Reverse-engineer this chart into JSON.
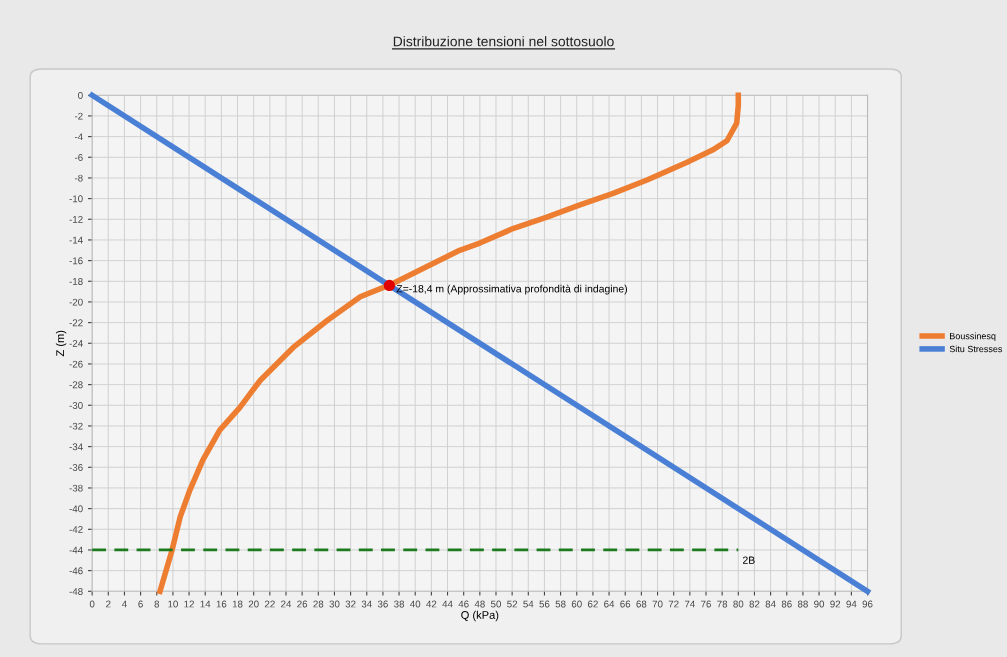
{
  "chart_data": {
    "type": "line",
    "title": "Distribuzione tensioni nel sottosuolo",
    "xlabel": "Q (kPa)",
    "ylabel": "Z (m)",
    "xlim": [
      0,
      96
    ],
    "ylim": [
      -48,
      0
    ],
    "xticks": [
      0,
      2,
      4,
      6,
      8,
      10,
      12,
      14,
      16,
      18,
      20,
      22,
      24,
      26,
      28,
      30,
      32,
      34,
      36,
      38,
      40,
      42,
      44,
      46,
      48,
      50,
      52,
      54,
      56,
      58,
      60,
      62,
      64,
      66,
      68,
      70,
      72,
      74,
      76,
      78,
      80,
      82,
      84,
      86,
      88,
      90,
      92,
      94,
      96
    ],
    "yticks": [
      0,
      -2,
      -4,
      -6,
      -8,
      -10,
      -12,
      -14,
      -16,
      -18,
      -20,
      -22,
      -24,
      -26,
      -28,
      -30,
      -32,
      -34,
      -36,
      -38,
      -40,
      -42,
      -44,
      -46,
      -48
    ],
    "grid": true,
    "legend": "right",
    "series": [
      {
        "name": "Boussinesq",
        "color": "#ed7d31",
        "x": [
          80,
          80,
          79.8,
          78.6,
          76.8,
          73.6,
          68.7,
          64.5,
          60.4,
          56.3,
          52.1,
          48,
          45.5,
          41.4,
          37.3,
          33.2,
          29.1,
          24.9,
          20.8,
          18.3,
          15.8,
          13.7,
          12.1,
          10.9,
          9.9,
          8.4
        ],
        "values": [
          0,
          -1,
          -2.7,
          -4.4,
          -5.3,
          -6.5,
          -8.2,
          -9.5,
          -10.6,
          -11.8,
          -12.9,
          -14.3,
          -15,
          -16.6,
          -18.2,
          -19.5,
          -21.8,
          -24.4,
          -27.6,
          -30.2,
          -32.4,
          -35.3,
          -38.2,
          -40.8,
          -44,
          -48
        ]
      },
      {
        "name": "Situ Stresses",
        "color": "#4a7fd6",
        "x": [
          0,
          96
        ],
        "values": [
          0,
          -48
        ]
      },
      {
        "type": "line",
        "color": "#1e7a1e",
        "line_style": "dashed",
        "x": [
          0,
          80
        ],
        "values": [
          -44,
          -44
        ]
      },
      {
        "type": "scatter",
        "color": "#e00000",
        "marker": "circle",
        "x": [
          36.8
        ],
        "values": [
          -18.4
        ]
      }
    ],
    "annotations": [
      {
        "text": "Z=-18,4 m (Approssimativa profondità di indagine)",
        "x": 36.8,
        "y": -18.4
      },
      {
        "text": "2B",
        "x": 80,
        "y": -44
      }
    ]
  }
}
